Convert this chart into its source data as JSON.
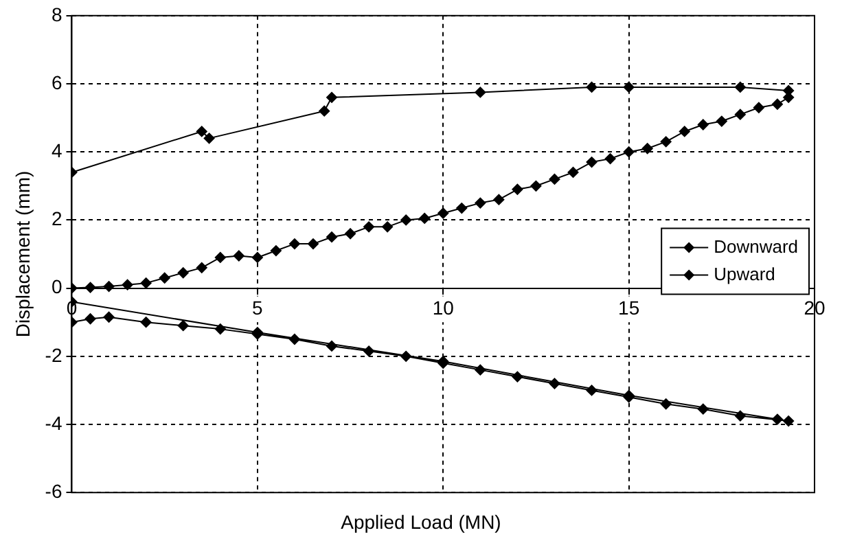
{
  "chart_data": {
    "type": "line",
    "xlabel": "Applied Load (MN)",
    "ylabel": "Displacement (mm)",
    "xlim": [
      0,
      20
    ],
    "xticks": [
      0,
      5,
      10,
      15,
      20
    ],
    "ylim": [
      -6,
      8
    ],
    "yticks": [
      -6,
      -4,
      -2,
      0,
      2,
      4,
      6,
      8
    ],
    "grid": true,
    "legend": "right",
    "marker": "diamond",
    "line_style": "solid",
    "series": [
      {
        "name": "Downward",
        "color": "#000000",
        "x": [
          0,
          0.5,
          1,
          2,
          3,
          4,
          5,
          6,
          7,
          8,
          9,
          10,
          11,
          12,
          13,
          14,
          15,
          16,
          17,
          18,
          19.3,
          19,
          15,
          10,
          5,
          0
        ],
        "values": [
          -1,
          -0.9,
          -0.85,
          -1,
          -1.1,
          -1.2,
          -1.35,
          -1.5,
          -1.7,
          -1.85,
          -2,
          -2.2,
          -2.4,
          -2.6,
          -2.8,
          -3,
          -3.2,
          -3.4,
          -3.55,
          -3.75,
          -3.9,
          -3.85,
          -3.15,
          -2.15,
          -1.3,
          -0.4
        ]
      },
      {
        "name": "Upward",
        "color": "#000000",
        "x": [
          0,
          0.5,
          1,
          1.5,
          2,
          2.5,
          3,
          3.5,
          4,
          4.5,
          5,
          5.5,
          6,
          6.5,
          7,
          7.5,
          8,
          8.5,
          9,
          9.5,
          10,
          10.5,
          11,
          11.5,
          12,
          12.5,
          13,
          13.5,
          14,
          14.5,
          15,
          15.5,
          16,
          16.5,
          17,
          17.5,
          18,
          18.5,
          19,
          19.3,
          19.3,
          18,
          15,
          14,
          11,
          7,
          6.8,
          3.7,
          3.5,
          0
        ],
        "values": [
          0,
          0.02,
          0.05,
          0.1,
          0.15,
          0.3,
          0.45,
          0.6,
          0.9,
          0.95,
          0.9,
          1.1,
          1.3,
          1.3,
          1.5,
          1.6,
          1.8,
          1.8,
          2,
          2.05,
          2.2,
          2.35,
          2.5,
          2.6,
          2.9,
          3,
          3.2,
          3.4,
          3.7,
          3.8,
          4,
          4.1,
          4.3,
          4.6,
          4.8,
          4.9,
          5.1,
          5.3,
          5.4,
          5.6,
          5.8,
          5.9,
          5.9,
          5.9,
          5.75,
          5.6,
          5.2,
          4.4,
          4.6,
          3.4
        ]
      }
    ]
  }
}
